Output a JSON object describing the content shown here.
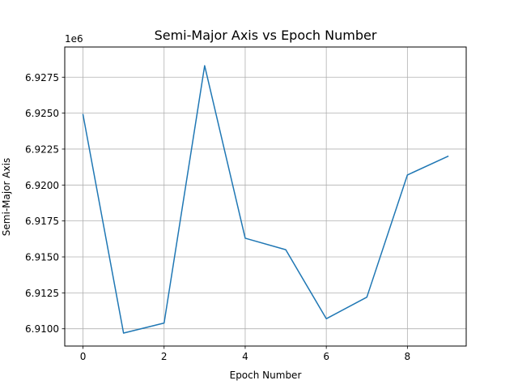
{
  "chart_data": {
    "type": "line",
    "title": "Semi-Major Axis vs Epoch Number",
    "xlabel": "Epoch Number",
    "ylabel": "Semi-Major Axis",
    "y_offset_label": "1e6",
    "xlim": [
      -0.45,
      9.45
    ],
    "ylim": [
      6908800,
      6929600
    ],
    "x_ticks": [
      0,
      2,
      4,
      6,
      8
    ],
    "x_tick_labels": [
      "0",
      "2",
      "4",
      "6",
      "8"
    ],
    "y_ticks": [
      6.91,
      6.9125,
      6.915,
      6.9175,
      6.92,
      6.9225,
      6.925,
      6.9275
    ],
    "y_tick_labels": [
      "6.9100",
      "6.9125",
      "6.9150",
      "6.9175",
      "6.9200",
      "6.9225",
      "6.9250",
      "6.9275"
    ],
    "grid": true,
    "series": [
      {
        "name": "Semi-Major Axis",
        "color": "#1f77b4",
        "x": [
          0,
          1,
          2,
          3,
          4,
          5,
          6,
          7,
          8,
          9
        ],
        "values": [
          6924900,
          6909700,
          6910400,
          6928300,
          6916300,
          6915500,
          6910700,
          6912200,
          6920700,
          6922000
        ]
      }
    ]
  }
}
